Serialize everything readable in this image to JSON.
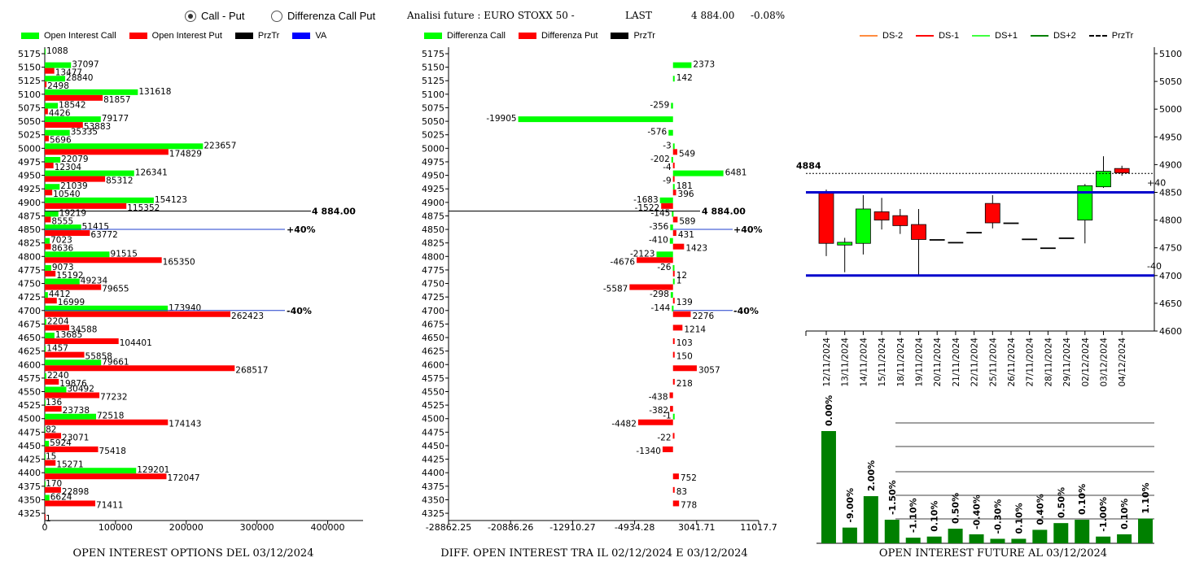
{
  "header": {
    "radio_call_put": "Call - Put",
    "radio_diff": "Differenza Call Put",
    "instrument": "Analisi future : EURO STOXX 50 -",
    "last_label": "LAST",
    "last_value": "4 884.00",
    "last_change": "-0.08%"
  },
  "legends": {
    "left": [
      {
        "label": "Open Interest Call",
        "color": "#00ff00",
        "kind": "box"
      },
      {
        "label": "Open Interest Put",
        "color": "#ff0000",
        "kind": "box"
      },
      {
        "label": "PrzTr",
        "color": "#000000",
        "kind": "box"
      },
      {
        "label": "VA",
        "color": "#0000ff",
        "kind": "box"
      }
    ],
    "middle": [
      {
        "label": "Differenza Call",
        "color": "#00ff00",
        "kind": "box"
      },
      {
        "label": "Differenza Put",
        "color": "#ff0000",
        "kind": "box"
      },
      {
        "label": "PrzTr",
        "color": "#000000",
        "kind": "box"
      }
    ],
    "right": [
      {
        "label": "DS-2",
        "color": "#ff8c40",
        "kind": "line"
      },
      {
        "label": "DS-1",
        "color": "#ff0000",
        "kind": "line"
      },
      {
        "label": "DS+1",
        "color": "#40ff40",
        "kind": "line"
      },
      {
        "label": "DS+2",
        "color": "#008000",
        "kind": "line"
      },
      {
        "label": "PrzTr",
        "color": "#000000",
        "kind": "dash"
      }
    ]
  },
  "chart_data": [
    {
      "type": "bar",
      "orientation": "horizontal",
      "title": "OPEN INTEREST OPTIONS DEL 03/12/2024",
      "strikes": [
        "5175",
        "5150",
        "5125",
        "5100",
        "5075",
        "5050",
        "5025",
        "5000",
        "4975",
        "4950",
        "4925",
        "4900",
        "4875",
        "4850",
        "4825",
        "4800",
        "4775",
        "4750",
        "4725",
        "4700",
        "4675",
        "4650",
        "4625",
        "4600",
        "4575",
        "4550",
        "4525",
        "4500",
        "4475",
        "4450",
        "4425",
        "4400",
        "4375",
        "4350",
        "4325"
      ],
      "series": [
        {
          "name": "Open Interest Call",
          "color": "#00ff00",
          "values": [
            1088,
            37097,
            28840,
            131618,
            18542,
            79177,
            35335,
            223657,
            22079,
            126341,
            21039,
            154123,
            19219,
            51415,
            7023,
            91515,
            9073,
            49234,
            4412,
            173940,
            2204,
            13685,
            1457,
            79661,
            2240,
            30492,
            136,
            72518,
            82,
            5924,
            15,
            129201,
            170,
            6624,
            null
          ]
        },
        {
          "name": "Open Interest Put",
          "color": "#ff0000",
          "values": [
            null,
            13477,
            2498,
            81857,
            4426,
            53883,
            5696,
            174829,
            12304,
            85312,
            10540,
            115352,
            8555,
            63772,
            8636,
            165350,
            15192,
            79655,
            16999,
            262423,
            34588,
            104401,
            55858,
            268517,
            19876,
            77232,
            23738,
            174143,
            23071,
            75418,
            15271,
            172047,
            22898,
            71411,
            1
          ]
        }
      ],
      "xlim": [
        0,
        450000
      ],
      "xticks": [
        "0",
        "100000",
        "200000",
        "300000",
        "400000"
      ],
      "price_line": {
        "strike": 4884,
        "label": "4 884.00"
      },
      "va_lines": [
        {
          "strike": 4850,
          "label": "+40%"
        },
        {
          "strike": 4700,
          "label": "-40%"
        }
      ]
    },
    {
      "type": "bar",
      "orientation": "horizontal",
      "title": "DIFF. OPEN INTEREST TRA IL 02/12/2024 E 03/12/2024",
      "strikes": [
        "5175",
        "5150",
        "5125",
        "5100",
        "5075",
        "5050",
        "5025",
        "5000",
        "4975",
        "4950",
        "4925",
        "4900",
        "4875",
        "4850",
        "4825",
        "4800",
        "4775",
        "4750",
        "4725",
        "4700",
        "4675",
        "4650",
        "4625",
        "4600",
        "4575",
        "4550",
        "4525",
        "4500",
        "4475",
        "4450",
        "4425",
        "4400",
        "4375",
        "4350",
        "4325"
      ],
      "series": [
        {
          "name": "Differenza Call",
          "color": "#00ff00",
          "values": [
            null,
            2373,
            142,
            null,
            -259,
            -19905,
            -576,
            -3,
            -202,
            6481,
            181,
            -1683,
            -145,
            -356,
            -410,
            -2123,
            -26,
            1,
            -298,
            -144,
            null,
            null,
            null,
            null,
            null,
            null,
            null,
            -1,
            null,
            null,
            null,
            null,
            null,
            null,
            null
          ]
        },
        {
          "name": "Differenza Put",
          "color": "#ff0000",
          "values": [
            null,
            null,
            null,
            null,
            null,
            null,
            null,
            549,
            -4,
            -9,
            396,
            -1522,
            589,
            431,
            1423,
            -4676,
            12,
            -5587,
            139,
            2276,
            1214,
            103,
            150,
            3057,
            218,
            -438,
            -382,
            -4482,
            -22,
            -1340,
            null,
            752,
            83,
            778,
            null
          ]
        }
      ],
      "xlim": [
        -28862.25,
        11017.7
      ],
      "xticks": [
        "-28862.25",
        "-20886.26",
        "-12910.27",
        "-4934.28",
        "3041.71",
        "11017.7"
      ],
      "price_line": {
        "strike": 4884,
        "label": "4 884.00"
      },
      "va_lines": [
        {
          "strike": 4850,
          "label": "+40%"
        },
        {
          "strike": 4700,
          "label": "-40%"
        }
      ]
    },
    {
      "type": "candlestick",
      "dates": [
        "12/11/2024",
        "13/11/2024",
        "14/11/2024",
        "15/11/2024",
        "18/11/2024",
        "19/11/2024",
        "20/11/2024",
        "21/11/2024",
        "22/11/2024",
        "25/11/2024",
        "26/11/2024",
        "27/11/2024",
        "28/11/2024",
        "29/11/2024",
        "02/12/2024",
        "03/12/2024",
        "04/12/2024"
      ],
      "candles": [
        {
          "o": 4850,
          "h": 4855,
          "l": 4735,
          "c": 4758
        },
        {
          "o": 4755,
          "h": 4768,
          "l": 4706,
          "c": 4760
        },
        {
          "o": 4758,
          "h": 4845,
          "l": 4738,
          "c": 4820
        },
        {
          "o": 4815,
          "h": 4840,
          "l": 4783,
          "c": 4800
        },
        {
          "o": 4808,
          "h": 4820,
          "l": 4775,
          "c": 4790
        },
        {
          "o": 4792,
          "h": 4820,
          "l": 4700,
          "c": 4765
        },
        {
          "o": 4765,
          "h": 4765,
          "l": 4765,
          "c": 4765
        },
        {
          "o": 4760,
          "h": 4760,
          "l": 4760,
          "c": 4760
        },
        {
          "o": 4778,
          "h": 4778,
          "l": 4778,
          "c": 4778
        },
        {
          "o": 4830,
          "h": 4845,
          "l": 4785,
          "c": 4795
        },
        {
          "o": 4795,
          "h": 4795,
          "l": 4795,
          "c": 4795
        },
        {
          "o": 4766,
          "h": 4766,
          "l": 4766,
          "c": 4766
        },
        {
          "o": 4750,
          "h": 4750,
          "l": 4750,
          "c": 4750
        },
        {
          "o": 4768,
          "h": 4768,
          "l": 4768,
          "c": 4768
        },
        {
          "o": 4800,
          "h": 4865,
          "l": 4758,
          "c": 4862
        },
        {
          "o": 4860,
          "h": 4915,
          "l": 4858,
          "c": 4888
        },
        {
          "o": 4893,
          "h": 4898,
          "l": 4880,
          "c": 4885
        }
      ],
      "ylim": [
        4600,
        5100
      ],
      "yticks": [
        "4600",
        "4650",
        "4700",
        "4750",
        "4800",
        "4850",
        "4900",
        "4950",
        "5000",
        "5050",
        "5100"
      ],
      "price_line": {
        "value": 4884,
        "label": "4884"
      },
      "bands": [
        {
          "value": 4850,
          "label": "+40"
        },
        {
          "value": 4700,
          "label": "-40"
        }
      ]
    },
    {
      "type": "bar",
      "title": "OPEN INTEREST FUTURE AL 03/12/2024",
      "values": [
        100,
        14,
        42,
        21,
        5,
        6,
        13,
        8,
        4,
        4,
        12,
        18,
        21,
        6,
        8,
        22
      ],
      "labels": [
        "0.00%",
        "-9.00%",
        "2.00%",
        "-1.50%",
        "-1.10%",
        "0.10%",
        "0.50%",
        "-0.40%",
        "-0.30%",
        "0.10%",
        "0.40%",
        "0.50%",
        "0.10%",
        "-1.00%",
        "0.10%",
        "1.10%"
      ],
      "ylim": [
        0,
        100
      ]
    }
  ]
}
